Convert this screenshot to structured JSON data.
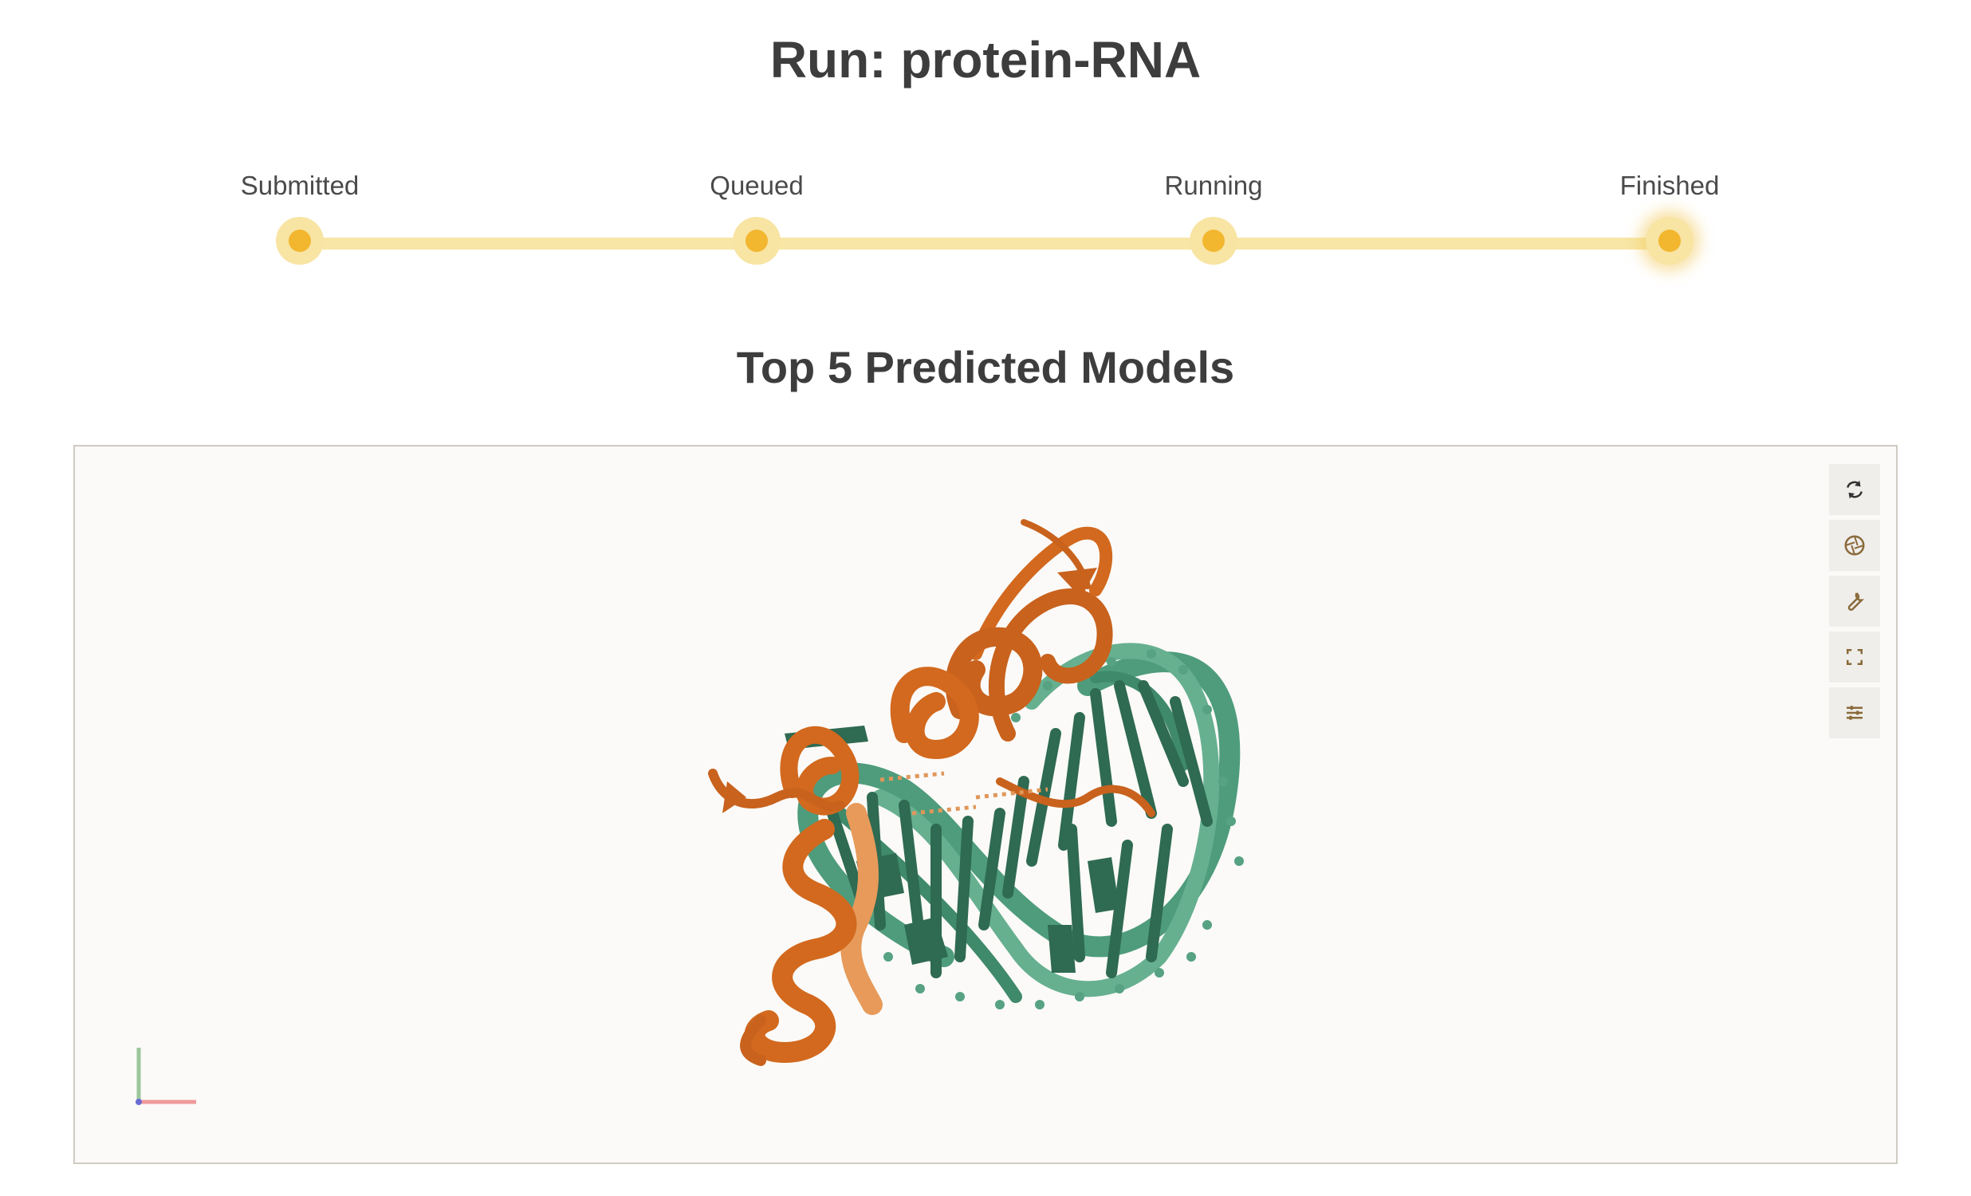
{
  "page": {
    "title": "Run: protein-RNA"
  },
  "stepper": {
    "steps": [
      {
        "label": "Submitted"
      },
      {
        "label": "Queued"
      },
      {
        "label": "Running"
      },
      {
        "label": "Finished"
      }
    ],
    "current_step": "Finished",
    "colors": {
      "track": "#f7e6a6",
      "dot": "#f2b62f",
      "ring": "#f8e4a3"
    }
  },
  "models": {
    "title": "Top 5 Predicted Models"
  },
  "viewer": {
    "toolbar": [
      {
        "icon": "refresh-icon"
      },
      {
        "icon": "camera-aperture-icon"
      },
      {
        "icon": "wrench-icon"
      },
      {
        "icon": "fullscreen-icon"
      },
      {
        "icon": "sliders-icon"
      }
    ],
    "colors": {
      "protein": "#d2691e",
      "protein_light": "#e79a5a",
      "rna": "#4e9c7c",
      "rna_dark": "#2f6a52",
      "background": "#fbfaf8"
    }
  }
}
